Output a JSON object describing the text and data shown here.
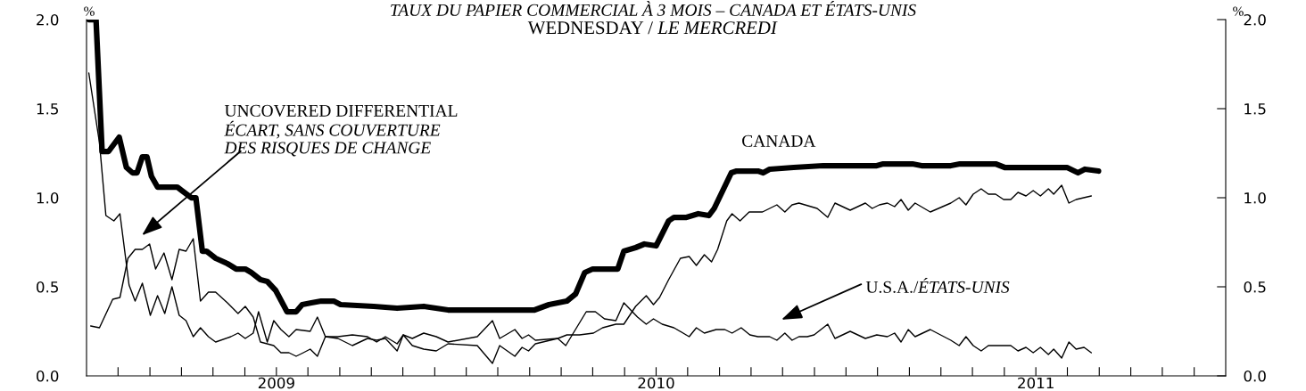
{
  "chart_data": {
    "type": "line",
    "title": "TAUX DU PAPIER COMMERCIAL À 3 MOIS – CANADA ET ÉTATS-UNIS",
    "subtitle": "WEDNESDAY / LE MERCREDI",
    "ylabel": "%",
    "y2label": "%",
    "xlim": [
      2008.5,
      2011.5
    ],
    "ylim": [
      0,
      2.0
    ],
    "yticks": [
      {
        "value": 0,
        "label": "0.0"
      },
      {
        "value": 0.5,
        "label": "0.5"
      },
      {
        "value": 1.0,
        "label": "1.0"
      },
      {
        "value": 1.5,
        "label": "1.5"
      },
      {
        "value": 2.0,
        "label": "2.0"
      }
    ],
    "y2lim": [
      0,
      2.0
    ],
    "y2ticks": [
      {
        "value": 0,
        "label": "0.0"
      },
      {
        "value": 0.5,
        "label": "0.5"
      },
      {
        "value": 1.0,
        "label": "1.0"
      },
      {
        "value": 1.5,
        "label": "1.5"
      },
      {
        "value": 2.0,
        "label": "2.0"
      }
    ],
    "xticks": [
      {
        "value": 2008.583,
        "label": null
      },
      {
        "value": 2008.667,
        "label": null
      },
      {
        "value": 2008.75,
        "label": null
      },
      {
        "value": 2008.833,
        "label": null
      },
      {
        "value": 2008.917,
        "label": null
      },
      {
        "value": 2009,
        "label": "2009"
      },
      {
        "value": 2009.083,
        "label": null
      },
      {
        "value": 2009.167,
        "label": null
      },
      {
        "value": 2009.25,
        "label": null
      },
      {
        "value": 2009.333,
        "label": null
      },
      {
        "value": 2009.417,
        "label": null
      },
      {
        "value": 2009.5,
        "label": null
      },
      {
        "value": 2009.583,
        "label": null
      },
      {
        "value": 2009.667,
        "label": null
      },
      {
        "value": 2009.75,
        "label": null
      },
      {
        "value": 2009.833,
        "label": null
      },
      {
        "value": 2009.917,
        "label": null
      },
      {
        "value": 2010,
        "label": "2010"
      },
      {
        "value": 2010.083,
        "label": null
      },
      {
        "value": 2010.167,
        "label": null
      },
      {
        "value": 2010.25,
        "label": null
      },
      {
        "value": 2010.333,
        "label": null
      },
      {
        "value": 2010.417,
        "label": null
      },
      {
        "value": 2010.5,
        "label": null
      },
      {
        "value": 2010.583,
        "label": null
      },
      {
        "value": 2010.667,
        "label": null
      },
      {
        "value": 2010.75,
        "label": null
      },
      {
        "value": 2010.833,
        "label": null
      },
      {
        "value": 2010.917,
        "label": null
      },
      {
        "value": 2011,
        "label": "2011"
      },
      {
        "value": 2011.083,
        "label": null
      },
      {
        "value": 2011.167,
        "label": null
      },
      {
        "value": 2011.25,
        "label": null
      },
      {
        "value": 2011.333,
        "label": null
      },
      {
        "value": 2011.417,
        "label": null
      }
    ],
    "grid": false,
    "legend": false,
    "marker": "none",
    "line_style": "solid",
    "series": [
      {
        "name": "CANADA",
        "color": "#000000",
        "x": [
          2008.506,
          2008.525,
          2008.541,
          2008.558,
          2008.586,
          2008.605,
          2008.621,
          2008.633,
          2008.647,
          2008.659,
          2008.671,
          2008.687,
          2008.739,
          2008.751,
          2008.776,
          2008.788,
          2008.805,
          2008.816,
          2008.84,
          2008.871,
          2008.894,
          2008.918,
          2008.934,
          2008.958,
          2008.976,
          2008.998,
          2009.028,
          2009.052,
          2009.068,
          2009.092,
          2009.118,
          2009.151,
          2009.169,
          2009.256,
          2009.318,
          2009.388,
          2009.452,
          2009.616,
          2009.647,
          2009.68,
          2009.718,
          2009.765,
          2009.788,
          2009.812,
          2009.833,
          2009.899,
          2009.915,
          2009.946,
          2009.969,
          2010.0,
          2010.033,
          2010.047,
          2010.08,
          2010.111,
          2010.139,
          2010.153,
          2010.198,
          2010.212,
          2010.268,
          2010.282,
          2010.299,
          2010.362,
          2010.44,
          2010.581,
          2010.598,
          2010.675,
          2010.699,
          2010.776,
          2010.8,
          2010.894,
          2010.918,
          2011.082,
          2011.111,
          2011.129,
          2011.165
        ],
        "values": [
          2.0,
          2.0,
          1.26,
          1.26,
          1.34,
          1.17,
          1.14,
          1.14,
          1.23,
          1.23,
          1.12,
          1.06,
          1.06,
          1.04,
          1.0,
          1.0,
          0.7,
          0.7,
          0.66,
          0.63,
          0.6,
          0.6,
          0.58,
          0.54,
          0.53,
          0.48,
          0.36,
          0.36,
          0.4,
          0.41,
          0.42,
          0.42,
          0.4,
          0.39,
          0.38,
          0.39,
          0.37,
          0.37,
          0.37,
          0.37,
          0.4,
          0.42,
          0.46,
          0.58,
          0.6,
          0.6,
          0.7,
          0.72,
          0.74,
          0.73,
          0.87,
          0.89,
          0.89,
          0.91,
          0.9,
          0.94,
          1.14,
          1.15,
          1.15,
          1.14,
          1.16,
          1.17,
          1.18,
          1.18,
          1.19,
          1.19,
          1.18,
          1.18,
          1.19,
          1.19,
          1.17,
          1.17,
          1.14,
          1.16,
          1.15
        ]
      },
      {
        "name": "U.S.A./ÉTATS-UNIS",
        "color": "#000000",
        "x": [
          2008.506,
          2008.534,
          2008.551,
          2008.572,
          2008.588,
          2008.612,
          2008.628,
          2008.647,
          2008.668,
          2008.687,
          2008.706,
          2008.725,
          2008.744,
          2008.762,
          2008.781,
          2008.8,
          2008.821,
          2008.84,
          2008.88,
          2008.899,
          2008.918,
          2008.939,
          2008.953,
          2008.976,
          2008.993,
          2009.012,
          2009.033,
          2009.052,
          2009.089,
          2009.108,
          2009.129,
          2009.162,
          2009.2,
          2009.24,
          2009.264,
          2009.287,
          2009.318,
          2009.334,
          2009.358,
          2009.388,
          2009.421,
          2009.452,
          2009.529,
          2009.569,
          2009.588,
          2009.628,
          2009.647,
          2009.664,
          2009.682,
          2009.741,
          2009.762,
          2009.816,
          2009.84,
          2009.864,
          2009.894,
          2009.915,
          2009.951,
          2009.974,
          2009.993,
          2010.016,
          2010.047,
          2010.087,
          2010.106,
          2010.127,
          2010.158,
          2010.181,
          2010.2,
          2010.224,
          2010.247,
          2010.268,
          2010.299,
          2010.318,
          2010.339,
          2010.358,
          2010.376,
          2010.398,
          2010.416,
          2010.452,
          2010.471,
          2010.511,
          2010.551,
          2010.581,
          2010.609,
          2010.628,
          2010.645,
          2010.664,
          2010.682,
          2010.722,
          2010.776,
          2010.798,
          2010.816,
          2010.835,
          2010.856,
          2010.875,
          2010.894,
          2010.915,
          2010.934,
          2010.953,
          2010.974,
          2010.993,
          2011.012,
          2011.033,
          2011.047,
          2011.068,
          2011.087,
          2011.106,
          2011.127,
          2011.146
        ],
        "values": [
          1.7,
          1.31,
          0.9,
          0.87,
          0.91,
          0.51,
          0.42,
          0.52,
          0.34,
          0.45,
          0.35,
          0.5,
          0.34,
          0.31,
          0.22,
          0.27,
          0.22,
          0.19,
          0.22,
          0.24,
          0.21,
          0.24,
          0.36,
          0.19,
          0.31,
          0.26,
          0.22,
          0.26,
          0.25,
          0.33,
          0.22,
          0.22,
          0.23,
          0.22,
          0.19,
          0.22,
          0.18,
          0.23,
          0.21,
          0.24,
          0.22,
          0.19,
          0.22,
          0.31,
          0.21,
          0.26,
          0.21,
          0.23,
          0.2,
          0.21,
          0.17,
          0.36,
          0.36,
          0.32,
          0.31,
          0.41,
          0.33,
          0.29,
          0.32,
          0.29,
          0.27,
          0.22,
          0.27,
          0.24,
          0.26,
          0.26,
          0.24,
          0.27,
          0.23,
          0.22,
          0.22,
          0.2,
          0.24,
          0.2,
          0.22,
          0.22,
          0.23,
          0.29,
          0.21,
          0.25,
          0.21,
          0.23,
          0.22,
          0.24,
          0.19,
          0.26,
          0.22,
          0.26,
          0.2,
          0.17,
          0.22,
          0.17,
          0.14,
          0.17,
          0.17,
          0.17,
          0.17,
          0.14,
          0.16,
          0.13,
          0.16,
          0.12,
          0.15,
          0.1,
          0.19,
          0.15,
          0.16,
          0.13
        ]
      },
      {
        "name": "UNCOVERED DIFFERENTIAL\nÉCART, SANS COUVERTURE\nDES RISQUES DE CHANGE",
        "color": "#000000",
        "x": [
          2008.511,
          2008.534,
          2008.569,
          2008.588,
          2008.609,
          2008.628,
          2008.647,
          2008.666,
          2008.682,
          2008.704,
          2008.725,
          2008.744,
          2008.762,
          2008.781,
          2008.8,
          2008.821,
          2008.84,
          2008.871,
          2008.899,
          2008.918,
          2008.939,
          2008.958,
          2008.993,
          2009.012,
          2009.033,
          2009.052,
          2009.071,
          2009.089,
          2009.108,
          2009.129,
          2009.162,
          2009.2,
          2009.24,
          2009.264,
          2009.287,
          2009.318,
          2009.334,
          2009.358,
          2009.388,
          2009.421,
          2009.452,
          2009.529,
          2009.569,
          2009.588,
          2009.628,
          2009.647,
          2009.664,
          2009.682,
          2009.741,
          2009.765,
          2009.798,
          2009.835,
          2009.859,
          2009.894,
          2009.915,
          2009.946,
          2009.974,
          2009.993,
          2010.009,
          2010.033,
          2010.064,
          2010.087,
          2010.106,
          2010.127,
          2010.146,
          2010.162,
          2010.186,
          2010.2,
          2010.221,
          2010.245,
          2010.28,
          2010.299,
          2010.318,
          2010.339,
          2010.358,
          2010.376,
          2010.424,
          2010.452,
          2010.471,
          2010.511,
          2010.551,
          2010.569,
          2010.588,
          2010.609,
          2010.628,
          2010.645,
          2010.664,
          2010.682,
          2010.722,
          2010.776,
          2010.798,
          2010.816,
          2010.835,
          2010.856,
          2010.875,
          2010.894,
          2010.915,
          2010.934,
          2010.953,
          2010.974,
          2010.993,
          2011.012,
          2011.033,
          2011.047,
          2011.068,
          2011.087,
          2011.106,
          2011.146
        ],
        "values": [
          0.28,
          0.27,
          0.43,
          0.44,
          0.66,
          0.71,
          0.71,
          0.74,
          0.6,
          0.69,
          0.54,
          0.71,
          0.7,
          0.77,
          0.42,
          0.47,
          0.47,
          0.41,
          0.35,
          0.39,
          0.33,
          0.19,
          0.17,
          0.13,
          0.13,
          0.11,
          0.13,
          0.15,
          0.11,
          0.22,
          0.21,
          0.17,
          0.21,
          0.2,
          0.21,
          0.14,
          0.23,
          0.17,
          0.15,
          0.14,
          0.18,
          0.17,
          0.07,
          0.17,
          0.11,
          0.16,
          0.14,
          0.18,
          0.21,
          0.23,
          0.23,
          0.24,
          0.27,
          0.29,
          0.29,
          0.39,
          0.45,
          0.4,
          0.44,
          0.54,
          0.66,
          0.67,
          0.62,
          0.68,
          0.64,
          0.71,
          0.87,
          0.91,
          0.87,
          0.92,
          0.92,
          0.94,
          0.96,
          0.92,
          0.96,
          0.97,
          0.94,
          0.89,
          0.97,
          0.93,
          0.97,
          0.94,
          0.96,
          0.97,
          0.95,
          0.99,
          0.93,
          0.97,
          0.92,
          0.97,
          1.0,
          0.96,
          1.02,
          1.05,
          1.02,
          1.02,
          0.99,
          0.99,
          1.03,
          1.01,
          1.04,
          1.01,
          1.05,
          1.02,
          1.07,
          0.97,
          0.99,
          1.01
        ]
      }
    ]
  }
}
